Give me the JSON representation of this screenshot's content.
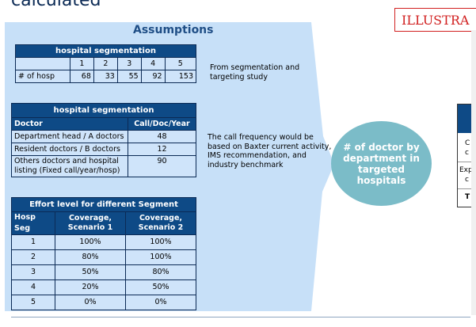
{
  "title": "calculated",
  "illustrative": "ILLUSTRA",
  "assumptions_title": "Assumptions",
  "seg_table": {
    "header": "hospital segmentation",
    "segments": [
      "1",
      "2",
      "3",
      "4",
      "5"
    ],
    "row_label": "# of hosp",
    "values": [
      "68",
      "33",
      "55",
      "92",
      "153"
    ]
  },
  "seg_note": "From segmentation and targeting study",
  "call_table": {
    "header": "hospital segmentation",
    "col1": "Doctor",
    "col2": "Call/Doc/Year",
    "rows": [
      {
        "doctor": "Department head / A doctors",
        "calls": "48"
      },
      {
        "doctor": "Resident doctors / B doctors",
        "calls": "12"
      },
      {
        "doctor": "Others doctors and hospital listing (Fixed call/year/hosp)",
        "calls": "90"
      }
    ]
  },
  "call_note": "The call frequency would be based on Baxter current activity, IMS recommendation, and industry benchmark",
  "effort_table": {
    "header": "Effort level for different Segment",
    "col1": "Hosp Seg",
    "col2": "Coverage, Scenario 1",
    "col3": "Coverage, Scenario 2",
    "rows": [
      {
        "seg": "1",
        "s1": "100%",
        "s2": "100%"
      },
      {
        "seg": "2",
        "s1": "80%",
        "s2": "100%"
      },
      {
        "seg": "3",
        "s1": "50%",
        "s2": "80%"
      },
      {
        "seg": "4",
        "s1": "20%",
        "s2": "50%"
      },
      {
        "seg": "5",
        "s1": "0%",
        "s2": "0%"
      }
    ]
  },
  "circle_text": "# of doctor by department in targeted hospitals",
  "right_box": {
    "head": "I",
    "row1": "C",
    "row1b": "c",
    "row2": "Exp",
    "row2b": "c",
    "row3": "T"
  }
}
